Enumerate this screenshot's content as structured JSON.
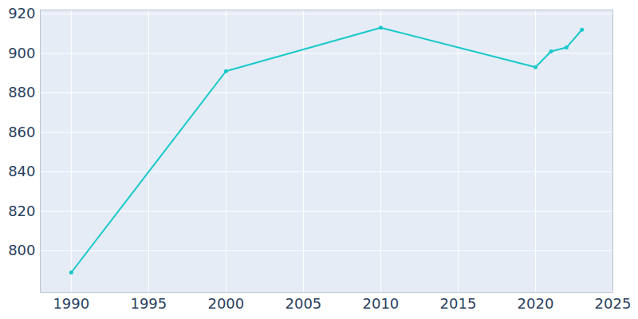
{
  "chart_data": {
    "type": "line",
    "x": [
      1990,
      2000,
      2010,
      2020,
      2021,
      2022,
      2023
    ],
    "values": [
      789,
      891,
      913,
      893,
      901,
      903,
      912
    ],
    "color": "#17c9c9",
    "marker": "circle",
    "xlim": [
      1988,
      2025
    ],
    "xticks": [
      1990,
      1995,
      2000,
      2005,
      2010,
      2015,
      2020,
      2025
    ],
    "ylim": [
      779,
      922
    ],
    "yticks": [
      800,
      820,
      840,
      860,
      880,
      900,
      920
    ],
    "grid": true
  }
}
